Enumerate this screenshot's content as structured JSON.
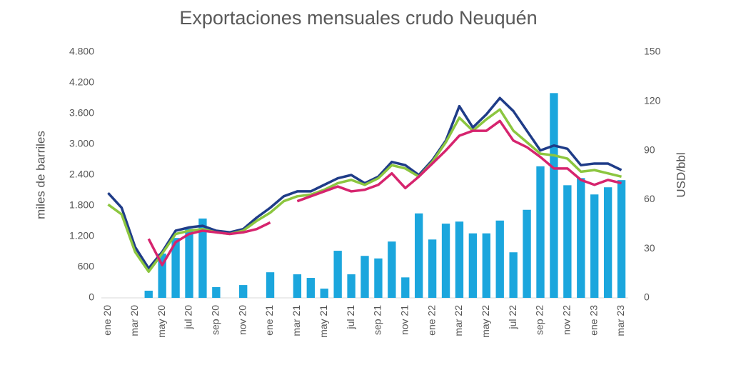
{
  "chart_data": {
    "type": "bar",
    "title": "Exportaciones mensuales crudo Neuquén",
    "ylabel": "miles de barriles",
    "y2label": "USD/bbl",
    "categories": [
      "ene 20",
      null,
      "mar 20",
      null,
      "may 20",
      null,
      "jul 20",
      null,
      "sep 20",
      null,
      "nov 20",
      null,
      "ene 21",
      null,
      "mar 21",
      null,
      "may 21",
      null,
      "jul 21",
      null,
      "sep 21",
      null,
      "nov 21",
      null,
      "ene 22",
      null,
      "mar 22",
      null,
      "may 22",
      null,
      "jul 22",
      null,
      "sep 22",
      null,
      "nov 22",
      null,
      "ene 23",
      null,
      "mar 23"
    ],
    "ylim": [
      0,
      4800
    ],
    "yticks": [
      0,
      600,
      {
        "value": 1200,
        "label": "1.200"
      },
      {
        "value": 1800,
        "label": "1.800"
      },
      {
        "value": 2400,
        "label": "2.400"
      },
      {
        "value": 3000,
        "label": "3.000"
      },
      {
        "value": 3600,
        "label": "3.600"
      },
      {
        "value": 4200,
        "label": "4.200"
      },
      {
        "value": 4800,
        "label": "4.800"
      }
    ],
    "y2lim": [
      0,
      150
    ],
    "y2ticks": [
      0,
      30,
      60,
      90,
      120,
      150
    ],
    "grid": false,
    "series": [
      {
        "type": "bar",
        "color": "#1ba6dd",
        "values": [
          null,
          null,
          null,
          140,
          865,
          1170,
          1350,
          1550,
          210,
          null,
          250,
          null,
          500,
          null,
          460,
          390,
          180,
          920,
          460,
          820,
          770,
          1100,
          400,
          1650,
          1140,
          1450,
          1490,
          1260,
          1260,
          1510,
          890,
          1720,
          2570,
          4000,
          2200,
          2340,
          2020,
          2160,
          2300
        ]
      },
      {
        "type": "line",
        "axis": "y2",
        "color": "#1f3c88",
        "values": [
          64,
          55,
          31,
          18,
          28,
          41,
          43,
          44,
          41,
          40,
          42,
          49,
          55,
          62,
          65,
          65,
          69,
          73,
          75,
          70,
          74,
          83,
          81,
          75,
          84,
          96,
          117,
          104,
          112,
          122,
          114,
          102,
          90,
          93,
          91,
          81,
          82,
          82,
          78
        ]
      },
      {
        "type": "line",
        "axis": "y2",
        "color": "#8cc63f",
        "values": [
          57,
          51,
          28,
          16,
          27,
          39,
          41,
          42,
          40,
          39,
          41,
          47,
          52,
          59,
          62,
          63,
          66,
          70,
          72,
          69,
          73,
          81,
          79,
          74,
          83,
          95,
          110,
          102,
          109,
          115,
          102,
          95,
          88,
          87,
          85,
          77,
          78,
          76,
          74
        ]
      },
      {
        "type": "line",
        "axis": "y2",
        "color": "#d6246e",
        "values": [
          null,
          null,
          null,
          36,
          20,
          34,
          39,
          41,
          40,
          39,
          40,
          42,
          46,
          null,
          59,
          62,
          65,
          68,
          65,
          66,
          69,
          76,
          67,
          74,
          82,
          90,
          99,
          102,
          102,
          108,
          96,
          92,
          86,
          79,
          79,
          72,
          69,
          72,
          70
        ]
      }
    ]
  }
}
